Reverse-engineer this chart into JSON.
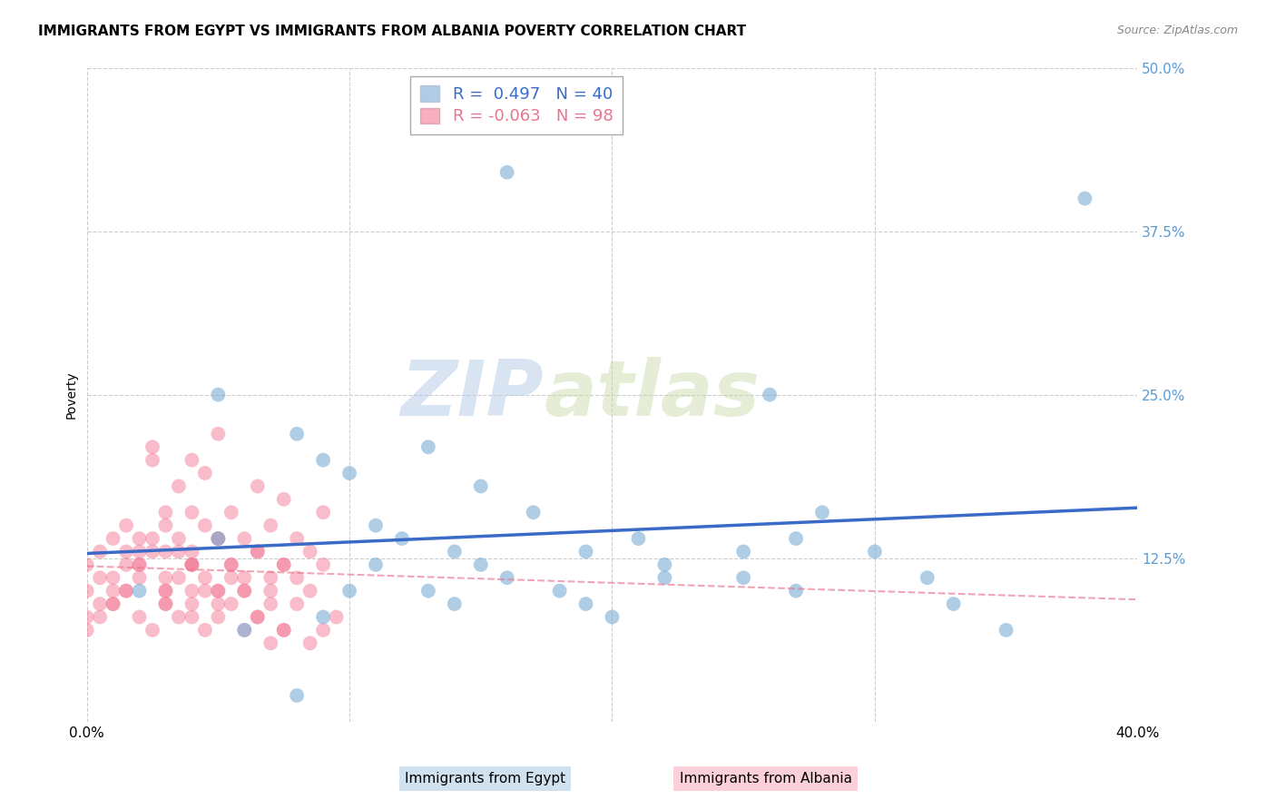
{
  "title": "IMMIGRANTS FROM EGYPT VS IMMIGRANTS FROM ALBANIA POVERTY CORRELATION CHART",
  "source": "Source: ZipAtlas.com",
  "ylabel": "Poverty",
  "xlim": [
    0.0,
    0.4
  ],
  "ylim": [
    0.0,
    0.5
  ],
  "xticks": [
    0.0,
    0.1,
    0.2,
    0.3,
    0.4
  ],
  "xtick_labels": [
    "0.0%",
    "",
    "",
    "",
    "40.0%"
  ],
  "yticks": [
    0.0,
    0.125,
    0.25,
    0.375,
    0.5
  ],
  "ytick_labels_right": [
    "",
    "12.5%",
    "25.0%",
    "37.5%",
    "50.0%"
  ],
  "grid_color": "#cccccc",
  "background_color": "#ffffff",
  "watermark_zip": "ZIP",
  "watermark_atlas": "atlas",
  "egypt_color": "#7aaed6",
  "albania_color": "#f47a96",
  "egypt_R": 0.497,
  "egypt_N": 40,
  "albania_R": -0.063,
  "albania_N": 98,
  "egypt_line_color": "#3a6bc9",
  "albania_line_color": "#e8758f",
  "egypt_points_x": [
    0.02,
    0.05,
    0.08,
    0.09,
    0.1,
    0.1,
    0.11,
    0.12,
    0.13,
    0.14,
    0.15,
    0.16,
    0.17,
    0.18,
    0.19,
    0.2,
    0.21,
    0.22,
    0.25,
    0.25,
    0.26,
    0.27,
    0.27,
    0.28,
    0.3,
    0.32,
    0.33,
    0.35,
    0.38,
    0.16,
    0.06,
    0.09,
    0.13,
    0.14,
    0.15,
    0.19,
    0.08,
    0.22,
    0.05,
    0.11
  ],
  "egypt_points_y": [
    0.1,
    0.25,
    0.22,
    0.2,
    0.19,
    0.1,
    0.15,
    0.14,
    0.21,
    0.13,
    0.12,
    0.11,
    0.16,
    0.1,
    0.09,
    0.08,
    0.14,
    0.12,
    0.13,
    0.11,
    0.25,
    0.14,
    0.1,
    0.16,
    0.13,
    0.11,
    0.09,
    0.07,
    0.4,
    0.42,
    0.07,
    0.08,
    0.1,
    0.09,
    0.18,
    0.13,
    0.02,
    0.11,
    0.14,
    0.12
  ],
  "albania_points_x": [
    0.0,
    0.005,
    0.01,
    0.01,
    0.015,
    0.02,
    0.02,
    0.02,
    0.025,
    0.025,
    0.03,
    0.03,
    0.03,
    0.035,
    0.035,
    0.04,
    0.04,
    0.04,
    0.04,
    0.045,
    0.045,
    0.05,
    0.05,
    0.05,
    0.055,
    0.055,
    0.06,
    0.06,
    0.065,
    0.065,
    0.07,
    0.07,
    0.075,
    0.075,
    0.08,
    0.08,
    0.085,
    0.085,
    0.09,
    0.09,
    0.0,
    0.005,
    0.01,
    0.015,
    0.015,
    0.02,
    0.025,
    0.03,
    0.03,
    0.035,
    0.04,
    0.04,
    0.045,
    0.05,
    0.05,
    0.055,
    0.06,
    0.065,
    0.07,
    0.075,
    0.0,
    0.005,
    0.01,
    0.015,
    0.02,
    0.025,
    0.03,
    0.03,
    0.035,
    0.04,
    0.04,
    0.045,
    0.05,
    0.055,
    0.06,
    0.065,
    0.07,
    0.075,
    0.0,
    0.005,
    0.01,
    0.015,
    0.02,
    0.025,
    0.03,
    0.035,
    0.04,
    0.045,
    0.05,
    0.055,
    0.06,
    0.065,
    0.07,
    0.075,
    0.08,
    0.085,
    0.09,
    0.095
  ],
  "albania_points_y": [
    0.12,
    0.13,
    0.11,
    0.14,
    0.15,
    0.13,
    0.14,
    0.12,
    0.2,
    0.21,
    0.15,
    0.16,
    0.13,
    0.18,
    0.14,
    0.2,
    0.16,
    0.12,
    0.13,
    0.19,
    0.15,
    0.22,
    0.14,
    0.1,
    0.16,
    0.12,
    0.14,
    0.1,
    0.18,
    0.13,
    0.15,
    0.11,
    0.17,
    0.12,
    0.14,
    0.11,
    0.13,
    0.1,
    0.16,
    0.12,
    0.1,
    0.11,
    0.09,
    0.13,
    0.1,
    0.12,
    0.14,
    0.11,
    0.1,
    0.13,
    0.12,
    0.09,
    0.11,
    0.1,
    0.14,
    0.12,
    0.11,
    0.13,
    0.1,
    0.12,
    0.08,
    0.09,
    0.1,
    0.12,
    0.11,
    0.13,
    0.09,
    0.1,
    0.11,
    0.12,
    0.08,
    0.1,
    0.09,
    0.11,
    0.1,
    0.08,
    0.09,
    0.07,
    0.07,
    0.08,
    0.09,
    0.1,
    0.08,
    0.07,
    0.09,
    0.08,
    0.1,
    0.07,
    0.08,
    0.09,
    0.07,
    0.08,
    0.06,
    0.07,
    0.09,
    0.06,
    0.07,
    0.08
  ],
  "title_fontsize": 11,
  "axis_label_fontsize": 10,
  "tick_fontsize": 11,
  "legend_fontsize": 13
}
